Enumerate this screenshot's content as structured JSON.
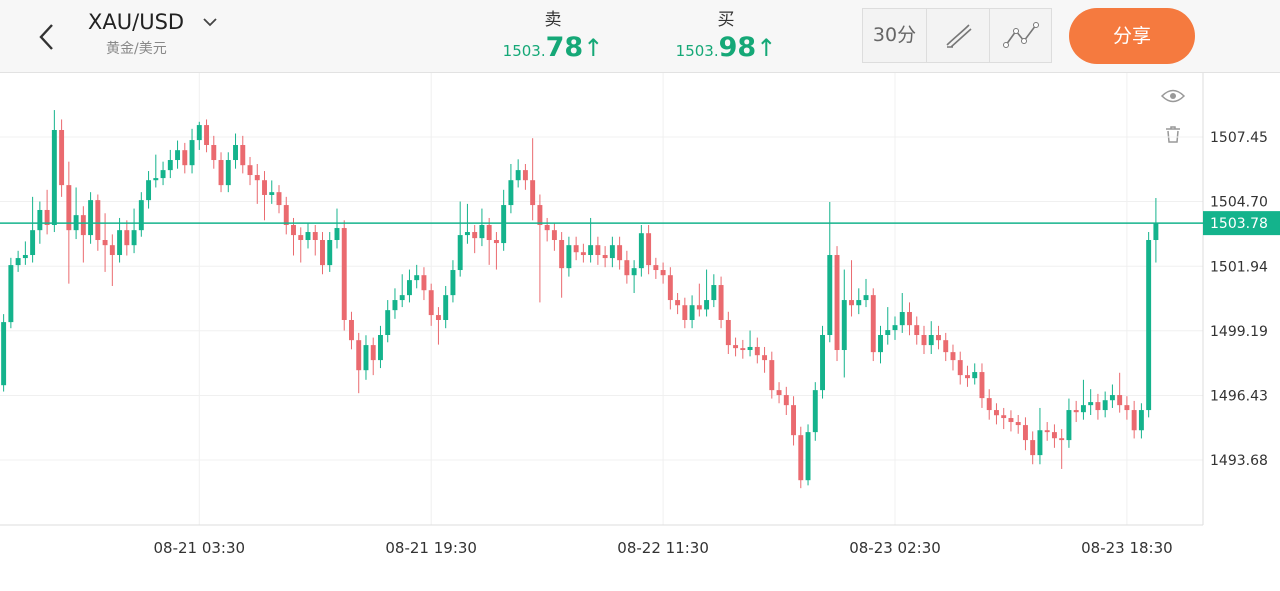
{
  "header": {
    "symbol": "XAU/USD",
    "subtitle": "黄金/美元",
    "sell": {
      "label": "卖",
      "price_int": "1503.",
      "price_dec": "78",
      "arrow": "↑"
    },
    "buy": {
      "label": "买",
      "price_int": "1503.",
      "price_dec": "98",
      "arrow": "↑"
    },
    "interval": "30分",
    "share": "分享"
  },
  "chart_data": {
    "type": "candlestick",
    "up_color": "#14b38c",
    "down_color": "#ea6a6f",
    "grid": true,
    "ylim": [
      1490.91,
      1510.18
    ],
    "yticks": [
      1507.45,
      {
        "value": 1504.7,
        "label": "1504.70"
      },
      1501.94,
      1499.19,
      1496.43,
      1493.68
    ],
    "xlim": [
      -0.5,
      165.5
    ],
    "xticks": [
      {
        "value": 27,
        "label": "08-21 03:30"
      },
      {
        "value": 59,
        "label": "08-21 19:30"
      },
      {
        "value": 91,
        "label": "08-22 11:30"
      },
      {
        "value": 123,
        "label": "08-23 02:30"
      },
      {
        "value": 155,
        "label": "08-23 18:30"
      }
    ],
    "last_price": 1503.78,
    "candles": [
      [
        1496.87,
        1499.9,
        1496.6,
        1499.56
      ],
      [
        1499.56,
        1502.3,
        1499.3,
        1501.99
      ],
      [
        1501.99,
        1502.6,
        1501.7,
        1502.29
      ],
      [
        1502.29,
        1503.0,
        1502.0,
        1502.42
      ],
      [
        1502.42,
        1504.9,
        1502.1,
        1503.48
      ],
      [
        1503.48,
        1504.7,
        1502.9,
        1504.34
      ],
      [
        1504.34,
        1505.2,
        1503.3,
        1503.7
      ],
      [
        1503.7,
        1508.6,
        1503.4,
        1507.75
      ],
      [
        1507.75,
        1508.2,
        1504.9,
        1505.4
      ],
      [
        1505.4,
        1506.4,
        1501.2,
        1503.48
      ],
      [
        1503.48,
        1505.3,
        1503.1,
        1504.12
      ],
      [
        1504.12,
        1504.5,
        1502.1,
        1503.27
      ],
      [
        1503.27,
        1505.1,
        1502.9,
        1504.76
      ],
      [
        1504.76,
        1505.0,
        1502.6,
        1503.06
      ],
      [
        1503.06,
        1504.2,
        1501.7,
        1502.84
      ],
      [
        1502.84,
        1503.3,
        1501.1,
        1502.42
      ],
      [
        1502.42,
        1504.0,
        1502.1,
        1503.48
      ],
      [
        1503.48,
        1503.9,
        1502.4,
        1502.84
      ],
      [
        1502.84,
        1504.4,
        1502.5,
        1503.48
      ],
      [
        1503.48,
        1505.1,
        1503.2,
        1504.76
      ],
      [
        1504.76,
        1506.0,
        1504.4,
        1505.61
      ],
      [
        1505.61,
        1506.7,
        1505.3,
        1505.7
      ],
      [
        1505.7,
        1506.4,
        1505.4,
        1506.04
      ],
      [
        1506.04,
        1506.9,
        1505.7,
        1506.47
      ],
      [
        1506.47,
        1507.3,
        1506.1,
        1506.89
      ],
      [
        1506.89,
        1507.2,
        1505.9,
        1506.25
      ],
      [
        1506.25,
        1507.8,
        1505.9,
        1507.32
      ],
      [
        1507.32,
        1508.1,
        1506.9,
        1507.96
      ],
      [
        1507.96,
        1508.2,
        1506.8,
        1507.11
      ],
      [
        1507.11,
        1507.5,
        1506.1,
        1506.47
      ],
      [
        1506.47,
        1506.8,
        1505.1,
        1505.4
      ],
      [
        1505.4,
        1506.8,
        1505.1,
        1506.47
      ],
      [
        1506.47,
        1507.6,
        1506.1,
        1507.11
      ],
      [
        1507.11,
        1507.5,
        1505.9,
        1506.25
      ],
      [
        1506.25,
        1506.6,
        1505.4,
        1505.83
      ],
      [
        1505.83,
        1506.3,
        1504.6,
        1505.61
      ],
      [
        1505.61,
        1506.0,
        1503.9,
        1504.98
      ],
      [
        1504.98,
        1505.6,
        1504.6,
        1505.1
      ],
      [
        1505.1,
        1505.4,
        1504.2,
        1504.55
      ],
      [
        1504.55,
        1504.9,
        1503.3,
        1503.7
      ],
      [
        1503.7,
        1504.0,
        1502.4,
        1503.27
      ],
      [
        1503.27,
        1503.6,
        1502.1,
        1503.06
      ],
      [
        1503.06,
        1503.8,
        1502.7,
        1503.4
      ],
      [
        1503.4,
        1503.7,
        1502.4,
        1503.06
      ],
      [
        1503.06,
        1503.4,
        1501.6,
        1501.99
      ],
      [
        1501.99,
        1503.4,
        1501.7,
        1503.06
      ],
      [
        1503.06,
        1504.4,
        1502.7,
        1503.57
      ],
      [
        1503.57,
        1503.9,
        1499.2,
        1499.65
      ],
      [
        1499.65,
        1500.0,
        1498.4,
        1498.79
      ],
      [
        1498.79,
        1499.1,
        1496.53,
        1497.51
      ],
      [
        1497.51,
        1499.0,
        1497.1,
        1498.58
      ],
      [
        1498.58,
        1498.9,
        1497.3,
        1497.94
      ],
      [
        1497.94,
        1499.4,
        1497.6,
        1499.01
      ],
      [
        1499.01,
        1500.5,
        1498.7,
        1500.07
      ],
      [
        1500.07,
        1501.0,
        1499.7,
        1500.5
      ],
      [
        1500.5,
        1501.6,
        1500.2,
        1500.71
      ],
      [
        1500.71,
        1501.8,
        1500.4,
        1501.35
      ],
      [
        1501.35,
        1502.0,
        1501.0,
        1501.56
      ],
      [
        1501.56,
        1501.9,
        1500.5,
        1500.92
      ],
      [
        1500.92,
        1501.2,
        1499.4,
        1499.86
      ],
      [
        1499.86,
        1500.2,
        1498.6,
        1499.65
      ],
      [
        1499.65,
        1501.1,
        1499.3,
        1500.71
      ],
      [
        1500.71,
        1502.2,
        1500.4,
        1501.78
      ],
      [
        1501.78,
        1504.7,
        1501.5,
        1503.27
      ],
      [
        1503.27,
        1504.6,
        1502.9,
        1503.4
      ],
      [
        1503.4,
        1503.7,
        1502.5,
        1503.14
      ],
      [
        1503.14,
        1504.4,
        1502.8,
        1503.7
      ],
      [
        1503.7,
        1504.0,
        1502.0,
        1503.06
      ],
      [
        1503.06,
        1503.4,
        1501.8,
        1502.93
      ],
      [
        1502.93,
        1505.2,
        1502.6,
        1504.55
      ],
      [
        1504.55,
        1506.3,
        1504.2,
        1505.61
      ],
      [
        1505.61,
        1506.5,
        1505.3,
        1506.04
      ],
      [
        1506.04,
        1506.3,
        1505.2,
        1505.61
      ],
      [
        1505.61,
        1507.4,
        1503.9,
        1504.55
      ],
      [
        1504.55,
        1505.0,
        1500.4,
        1503.7
      ],
      [
        1503.7,
        1504.0,
        1503.0,
        1503.48
      ],
      [
        1503.48,
        1503.8,
        1502.6,
        1503.06
      ],
      [
        1503.06,
        1503.4,
        1500.6,
        1501.86
      ],
      [
        1501.86,
        1503.2,
        1501.5,
        1502.84
      ],
      [
        1502.84,
        1503.2,
        1502.2,
        1502.54
      ],
      [
        1502.54,
        1502.9,
        1502.1,
        1502.42
      ],
      [
        1502.42,
        1504.0,
        1502.1,
        1502.84
      ],
      [
        1502.84,
        1503.2,
        1502.0,
        1502.42
      ],
      [
        1502.42,
        1502.8,
        1501.9,
        1502.29
      ],
      [
        1502.29,
        1503.2,
        1501.9,
        1502.84
      ],
      [
        1502.84,
        1503.2,
        1501.8,
        1502.2
      ],
      [
        1502.2,
        1502.6,
        1501.2,
        1501.56
      ],
      [
        1501.56,
        1502.2,
        1500.8,
        1501.86
      ],
      [
        1501.86,
        1503.7,
        1501.5,
        1503.35
      ],
      [
        1503.35,
        1503.7,
        1501.6,
        1501.99
      ],
      [
        1501.99,
        1502.3,
        1501.4,
        1501.78
      ],
      [
        1501.78,
        1502.1,
        1501.2,
        1501.56
      ],
      [
        1501.56,
        1501.9,
        1500.1,
        1500.5
      ],
      [
        1500.5,
        1500.8,
        1499.9,
        1500.28
      ],
      [
        1500.28,
        1500.6,
        1499.3,
        1499.65
      ],
      [
        1499.65,
        1500.7,
        1499.3,
        1500.28
      ],
      [
        1500.28,
        1501.2,
        1499.8,
        1500.1
      ],
      [
        1500.1,
        1501.8,
        1499.8,
        1500.5
      ],
      [
        1500.5,
        1501.6,
        1500.2,
        1501.14
      ],
      [
        1501.14,
        1501.5,
        1499.3,
        1499.65
      ],
      [
        1499.65,
        1500.0,
        1498.2,
        1498.58
      ],
      [
        1498.58,
        1498.9,
        1498.1,
        1498.45
      ],
      [
        1498.45,
        1498.8,
        1498.0,
        1498.37
      ],
      [
        1498.37,
        1499.2,
        1498.1,
        1498.5
      ],
      [
        1498.5,
        1498.9,
        1497.8,
        1498.15
      ],
      [
        1498.15,
        1498.5,
        1497.4,
        1497.94
      ],
      [
        1497.94,
        1498.3,
        1496.3,
        1496.66
      ],
      [
        1496.66,
        1497.0,
        1496.1,
        1496.45
      ],
      [
        1496.45,
        1496.8,
        1495.6,
        1496.02
      ],
      [
        1496.02,
        1496.4,
        1494.3,
        1494.74
      ],
      [
        1494.74,
        1495.1,
        1492.48,
        1492.82
      ],
      [
        1492.82,
        1495.2,
        1492.6,
        1494.87
      ],
      [
        1494.87,
        1497.0,
        1494.5,
        1496.66
      ],
      [
        1496.66,
        1499.4,
        1496.3,
        1499.01
      ],
      [
        1499.01,
        1504.68,
        1498.7,
        1502.42
      ],
      [
        1502.42,
        1502.8,
        1497.9,
        1498.37
      ],
      [
        1498.37,
        1501.8,
        1497.2,
        1500.5
      ],
      [
        1500.5,
        1502.2,
        1499.8,
        1500.28
      ],
      [
        1500.28,
        1501.0,
        1499.9,
        1500.5
      ],
      [
        1500.5,
        1501.4,
        1500.2,
        1500.71
      ],
      [
        1500.71,
        1501.0,
        1497.9,
        1498.28
      ],
      [
        1498.28,
        1499.4,
        1497.8,
        1499.01
      ],
      [
        1499.01,
        1500.2,
        1498.6,
        1499.22
      ],
      [
        1499.22,
        1499.8,
        1498.8,
        1499.43
      ],
      [
        1499.43,
        1500.8,
        1499.1,
        1499.99
      ],
      [
        1499.99,
        1500.4,
        1499.0,
        1499.43
      ],
      [
        1499.43,
        1499.8,
        1498.6,
        1499.01
      ],
      [
        1499.01,
        1499.4,
        1498.2,
        1498.58
      ],
      [
        1498.58,
        1499.6,
        1498.2,
        1499.01
      ],
      [
        1499.01,
        1499.4,
        1498.4,
        1498.79
      ],
      [
        1498.79,
        1499.1,
        1497.9,
        1498.28
      ],
      [
        1498.28,
        1498.6,
        1497.5,
        1497.94
      ],
      [
        1497.94,
        1498.3,
        1496.9,
        1497.3
      ],
      [
        1497.3,
        1497.7,
        1496.8,
        1497.17
      ],
      [
        1497.17,
        1497.8,
        1496.9,
        1497.43
      ],
      [
        1497.43,
        1497.8,
        1495.9,
        1496.32
      ],
      [
        1496.32,
        1496.7,
        1495.4,
        1495.81
      ],
      [
        1495.81,
        1496.1,
        1495.2,
        1495.59
      ],
      [
        1495.59,
        1495.9,
        1495.0,
        1495.47
      ],
      [
        1495.47,
        1495.8,
        1494.9,
        1495.3
      ],
      [
        1495.3,
        1495.6,
        1494.8,
        1495.17
      ],
      [
        1495.17,
        1495.5,
        1494.1,
        1494.53
      ],
      [
        1494.53,
        1494.9,
        1493.5,
        1493.89
      ],
      [
        1493.89,
        1495.9,
        1493.5,
        1494.95
      ],
      [
        1494.95,
        1495.3,
        1494.5,
        1494.87
      ],
      [
        1494.87,
        1495.2,
        1494.2,
        1494.61
      ],
      [
        1494.61,
        1495.0,
        1493.3,
        1494.53
      ],
      [
        1494.53,
        1496.3,
        1494.2,
        1495.81
      ],
      [
        1495.81,
        1496.2,
        1495.3,
        1495.72
      ],
      [
        1495.72,
        1497.1,
        1495.4,
        1496.02
      ],
      [
        1496.02,
        1496.7,
        1495.6,
        1496.15
      ],
      [
        1496.15,
        1496.5,
        1495.4,
        1495.81
      ],
      [
        1495.81,
        1496.6,
        1495.5,
        1496.23
      ],
      [
        1496.23,
        1496.9,
        1495.9,
        1496.45
      ],
      [
        1496.45,
        1497.4,
        1495.7,
        1496.02
      ],
      [
        1496.02,
        1496.4,
        1495.4,
        1495.81
      ],
      [
        1495.81,
        1496.2,
        1494.6,
        1494.95
      ],
      [
        1494.95,
        1496.1,
        1494.6,
        1495.81
      ],
      [
        1495.81,
        1503.4,
        1495.5,
        1503.06
      ],
      [
        1503.06,
        1504.85,
        1502.1,
        1503.78
      ]
    ]
  }
}
